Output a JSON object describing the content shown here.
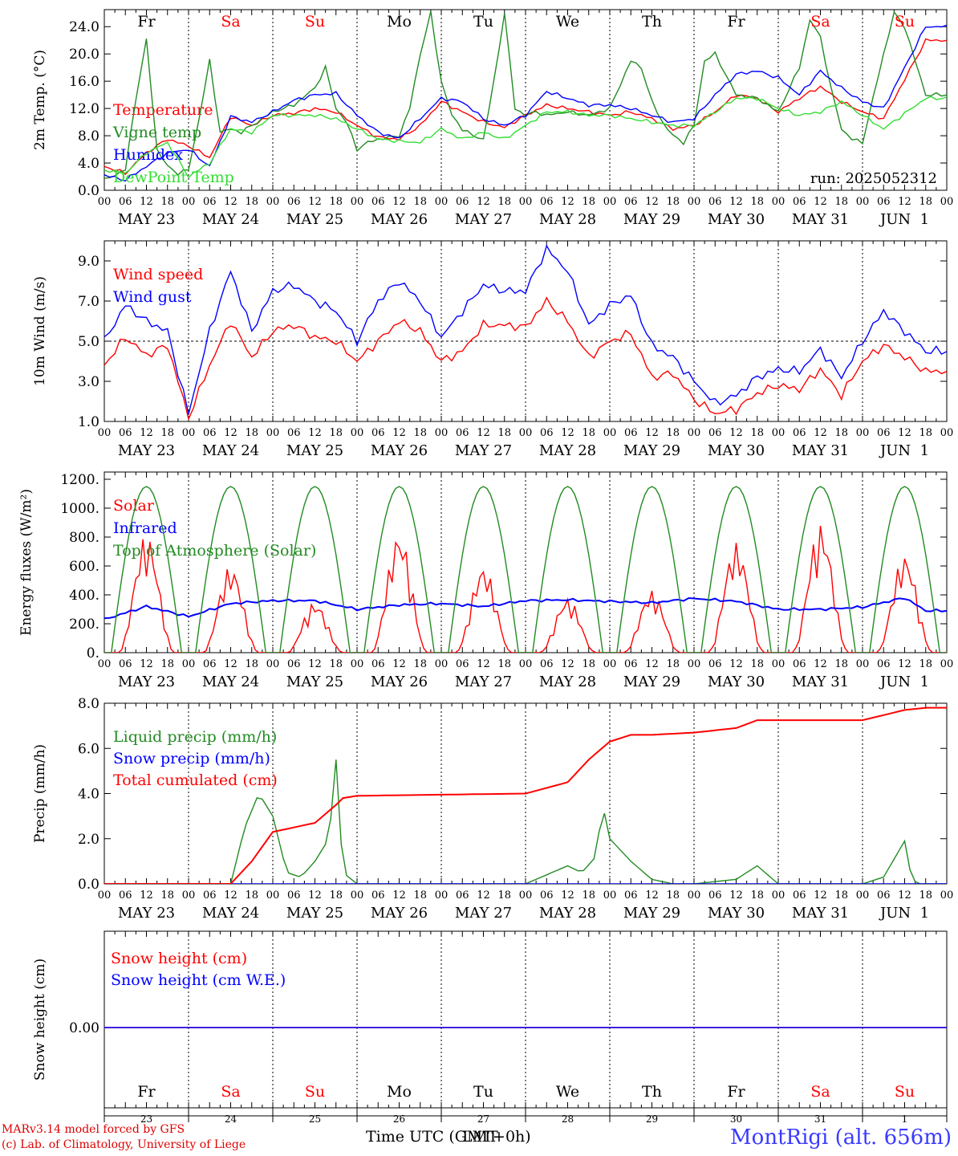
{
  "colors": {
    "red": "#ff0000",
    "green": "#228b22",
    "blue": "#0000ff",
    "lightgreen": "#33dd33",
    "text_red": "#ff0000",
    "station": "#3a3aff"
  },
  "day_labels": [
    "Fr",
    "Sa",
    "Su",
    "Mo",
    "Tu",
    "We",
    "Th",
    "Fr",
    "Sa",
    "Su"
  ],
  "day_label_colors": [
    "#000000",
    "#ff0000",
    "#ff0000",
    "#000000",
    "#000000",
    "#000000",
    "#000000",
    "#000000",
    "#ff0000",
    "#ff0000"
  ],
  "date_labels": [
    "MAY 23",
    "MAY 24",
    "MAY 25",
    "MAY 26",
    "MAY 27",
    "MAY 28",
    "MAY 29",
    "MAY 30",
    "MAY 31",
    "JUN  1"
  ],
  "hour_ticks": [
    "00",
    "06",
    "12",
    "18"
  ],
  "bottom_day_numbers": [
    "23",
    "24",
    "25",
    "26",
    "27",
    "28",
    "29",
    "30",
    "31",
    "1"
  ],
  "run_label": "run: 2025052312",
  "x_axis_title": "Time UTC (GMT+0h)",
  "x_axis_title_overlay": "LMT",
  "credits": [
    "MARv3.14 model forced by GFS",
    "(c) Lab. of Climatology, University of Liege"
  ],
  "station": "MontRigi (alt. 656m)",
  "chart_data": [
    {
      "type": "line",
      "ylabel": "2m Temp. (°C)",
      "ylim": [
        0,
        26.5
      ],
      "yticks": [
        "0.0",
        "4.0",
        "8.0",
        "12.0",
        "16.0",
        "20.0",
        "24.0"
      ],
      "x_unit": "hours since 2025-05-23 00 UTC",
      "series": [
        {
          "name": "Temperature",
          "color": "#ff0000",
          "x": [
            0,
            6,
            12,
            18,
            24,
            30,
            36,
            42,
            48,
            54,
            60,
            66,
            72,
            78,
            84,
            90,
            96,
            102,
            108,
            114,
            120,
            126,
            132,
            138,
            144,
            150,
            156,
            162,
            168,
            174,
            180,
            186,
            192,
            198,
            204,
            210,
            216,
            222,
            234
          ],
          "y": [
            3.5,
            2.5,
            5.5,
            7.5,
            6.5,
            4.8,
            10.8,
            9.5,
            11.0,
            11.3,
            12.0,
            11.5,
            9.5,
            7.8,
            7.5,
            9.5,
            13.0,
            11.5,
            10.0,
            9.2,
            11.0,
            12.5,
            12.0,
            11.5,
            11.0,
            11.5,
            10.5,
            9.0,
            9.5,
            11.5,
            14.0,
            13.5,
            11.5,
            13.5,
            15.2,
            13.0,
            11.5,
            10.5,
            22.0
          ]
        },
        {
          "name": "Vigne temp",
          "color": "#228b22",
          "x": [
            0,
            6,
            9,
            12,
            15,
            18,
            21,
            24,
            27,
            30,
            33,
            36,
            39,
            42,
            48,
            54,
            60,
            63,
            66,
            69,
            72,
            75,
            78,
            84,
            87,
            90,
            93,
            96,
            99,
            102,
            105,
            108,
            111,
            114,
            117,
            120,
            123,
            126,
            132,
            138,
            144,
            150,
            153,
            156,
            159,
            162,
            165,
            168,
            171,
            174,
            177,
            180,
            186,
            192,
            198,
            201,
            204,
            207,
            210,
            213,
            216,
            222,
            225,
            228,
            234
          ],
          "y": [
            1.5,
            3.0,
            13.5,
            22.0,
            6.0,
            3.5,
            2.5,
            3.0,
            10.5,
            19.0,
            8.5,
            9.0,
            8.5,
            9.5,
            11.5,
            12.5,
            15.0,
            18.0,
            12.0,
            10.0,
            6.0,
            7.0,
            7.5,
            8.0,
            12.0,
            20.0,
            26.0,
            16.0,
            11.0,
            9.0,
            8.0,
            7.5,
            16.0,
            26.0,
            12.0,
            11.0,
            11.5,
            11.0,
            11.5,
            11.0,
            12.0,
            19.0,
            18.0,
            13.0,
            10.0,
            8.0,
            7.0,
            9.5,
            19.0,
            20.0,
            17.0,
            14.0,
            13.5,
            11.5,
            18.0,
            25.0,
            22.5,
            15.0,
            9.0,
            7.5,
            7.0,
            20.0,
            26.0,
            24.0,
            14.0
          ]
        },
        {
          "name": "Humidex",
          "color": "#0000ff",
          "x": [
            0,
            6,
            12,
            18,
            24,
            30,
            36,
            42,
            48,
            54,
            60,
            66,
            72,
            78,
            84,
            90,
            96,
            102,
            108,
            114,
            120,
            126,
            132,
            138,
            144,
            150,
            156,
            162,
            168,
            174,
            180,
            186,
            192,
            198,
            204,
            210,
            216,
            222,
            234
          ],
          "y": [
            2.2,
            1.5,
            3.5,
            5.5,
            6.0,
            3.5,
            10.8,
            10.0,
            11.5,
            13.2,
            14.0,
            14.2,
            11.0,
            8.5,
            7.6,
            10.5,
            13.5,
            13.0,
            10.5,
            9.5,
            11.0,
            14.5,
            13.5,
            12.5,
            12.5,
            12.0,
            11.0,
            10.0,
            10.5,
            14.0,
            17.0,
            17.5,
            16.5,
            14.0,
            17.5,
            15.0,
            13.0,
            12.0,
            24.0
          ]
        },
        {
          "name": "DewPoint Temp",
          "color": "#33dd33",
          "x": [
            0,
            6,
            12,
            18,
            24,
            30,
            36,
            42,
            48,
            54,
            60,
            66,
            72,
            78,
            84,
            90,
            96,
            102,
            108,
            114,
            120,
            126,
            132,
            138,
            144,
            150,
            156,
            162,
            168,
            174,
            180,
            186,
            192,
            198,
            204,
            210,
            216,
            222,
            234
          ],
          "y": [
            3.0,
            2.5,
            5.5,
            7.0,
            2.0,
            4.0,
            9.0,
            8.5,
            11.0,
            11.0,
            11.0,
            10.5,
            9.0,
            7.5,
            7.2,
            7.0,
            9.0,
            7.5,
            8.5,
            7.5,
            9.5,
            11.5,
            11.5,
            11.0,
            11.0,
            10.5,
            10.0,
            9.5,
            9.5,
            11.5,
            13.5,
            13.5,
            12.0,
            11.0,
            11.5,
            13.0,
            11.0,
            9.0,
            13.5
          ]
        }
      ]
    },
    {
      "type": "line",
      "ylabel": "10m Wind (m/s)",
      "ylim": [
        1,
        10
      ],
      "yticks": [
        "1.0",
        "3.0",
        "5.0",
        "7.0",
        "9.0"
      ],
      "series": [
        {
          "name": "Wind speed",
          "color": "#ff0000",
          "x": [
            0,
            6,
            12,
            18,
            24,
            30,
            36,
            42,
            48,
            54,
            60,
            66,
            72,
            78,
            84,
            90,
            96,
            102,
            108,
            114,
            120,
            126,
            132,
            138,
            144,
            150,
            156,
            162,
            168,
            174,
            180,
            186,
            192,
            198,
            204,
            210,
            216,
            222,
            228,
            234
          ],
          "y": [
            3.8,
            5.2,
            4.3,
            4.8,
            1.2,
            3.8,
            6.0,
            4.2,
            5.5,
            5.8,
            5.2,
            5.0,
            4.0,
            5.0,
            6.0,
            5.5,
            4.0,
            4.5,
            5.8,
            5.8,
            5.7,
            7.0,
            6.0,
            4.2,
            5.0,
            5.4,
            3.2,
            3.4,
            2.1,
            1.4,
            1.6,
            2.4,
            2.8,
            2.6,
            3.6,
            2.3,
            4.0,
            4.8,
            4.2,
            3.5
          ]
        },
        {
          "name": "Wind gust",
          "color": "#0000ff",
          "x": [
            0,
            6,
            12,
            18,
            24,
            30,
            36,
            42,
            48,
            54,
            60,
            66,
            72,
            78,
            84,
            90,
            96,
            102,
            108,
            114,
            120,
            126,
            132,
            138,
            144,
            150,
            156,
            162,
            168,
            174,
            180,
            186,
            192,
            198,
            204,
            210,
            216,
            222,
            228,
            234
          ],
          "y": [
            5.0,
            6.8,
            6.0,
            5.5,
            1.4,
            5.5,
            8.5,
            5.5,
            7.5,
            7.8,
            7.0,
            6.5,
            5.0,
            7.0,
            8.0,
            7.0,
            5.2,
            6.5,
            7.8,
            7.5,
            7.5,
            9.6,
            8.5,
            5.8,
            6.8,
            7.3,
            4.8,
            4.2,
            3.0,
            1.9,
            2.3,
            3.2,
            3.6,
            3.5,
            4.6,
            3.2,
            5.0,
            6.5,
            5.5,
            4.5
          ]
        }
      ]
    },
    {
      "type": "line",
      "ylabel": "Energy fluxes (W/m²)",
      "ylim": [
        0,
        1250
      ],
      "yticks": [
        "0.",
        "200.",
        "400.",
        "600.",
        "800.",
        "1000.",
        "1200."
      ],
      "series": [
        {
          "name": "Solar",
          "color": "#ff0000",
          "peaks": [
            820,
            600,
            350,
            830,
            600,
            380,
            430,
            760,
            890,
            680
          ],
          "shape": "daily"
        },
        {
          "name": "Infrared",
          "color": "#0000ff",
          "x": [
            0,
            12,
            24,
            36,
            48,
            60,
            72,
            84,
            96,
            108,
            120,
            132,
            144,
            156,
            168,
            180,
            192,
            204,
            216,
            228,
            234
          ],
          "y": [
            230,
            320,
            250,
            340,
            360,
            360,
            300,
            330,
            340,
            320,
            360,
            365,
            355,
            345,
            375,
            355,
            300,
            300,
            315,
            380,
            290
          ]
        },
        {
          "name": "Top of Atmosphere (Solar)",
          "color": "#228b22",
          "peak": 1150,
          "shape": "daily"
        }
      ]
    },
    {
      "type": "line",
      "ylabel": "Precip (mm/h)",
      "ylim": [
        0,
        8
      ],
      "yticks": [
        "0.0",
        "2.0",
        "4.0",
        "6.0",
        "8.0"
      ],
      "series": [
        {
          "name": "Liquid precip (mm/h)",
          "color": "#228b22",
          "x": [
            0,
            36,
            40,
            44,
            48,
            52,
            56,
            60,
            64,
            66,
            68,
            72,
            120,
            132,
            136,
            140,
            142,
            144,
            150,
            156,
            162,
            168,
            180,
            186,
            192,
            200,
            204,
            210,
            216,
            222,
            228,
            230,
            232,
            234
          ],
          "y": [
            0,
            0,
            2.5,
            4.0,
            3.0,
            0.5,
            0.3,
            1.0,
            2.0,
            5.5,
            0.5,
            0,
            0,
            0.8,
            0.5,
            1.2,
            3.5,
            2.0,
            1.0,
            0.2,
            0,
            0,
            0.2,
            0.8,
            0,
            0,
            0,
            0,
            0,
            0.3,
            1.9,
            0.2,
            0,
            0
          ]
        },
        {
          "name": "Snow precip (mm/h)",
          "color": "#0000ff",
          "x": [
            0,
            234
          ],
          "y": [
            0,
            0
          ]
        },
        {
          "name": "Total cumulated (cm)",
          "color": "#ff0000",
          "x": [
            0,
            36,
            42,
            48,
            54,
            60,
            66,
            68,
            72,
            96,
            120,
            132,
            138,
            144,
            150,
            156,
            168,
            180,
            186,
            192,
            204,
            216,
            228,
            234
          ],
          "y": [
            0,
            0,
            1.0,
            2.3,
            2.5,
            2.7,
            3.5,
            3.8,
            3.9,
            3.95,
            4.0,
            4.5,
            5.5,
            6.3,
            6.6,
            6.6,
            6.7,
            6.9,
            7.25,
            7.25,
            7.25,
            7.25,
            7.7,
            7.8
          ]
        }
      ]
    },
    {
      "type": "line",
      "ylabel": "Snow height (cm)",
      "yticks": [
        "0.00"
      ],
      "series": [
        {
          "name": "Snow height (cm)",
          "color": "#ff0000",
          "x": [
            0,
            234
          ],
          "y": [
            0,
            0
          ]
        },
        {
          "name": "Snow height (cm W.E.)",
          "color": "#0000ff",
          "x": [
            0,
            234
          ],
          "y": [
            0,
            0
          ]
        }
      ]
    }
  ]
}
